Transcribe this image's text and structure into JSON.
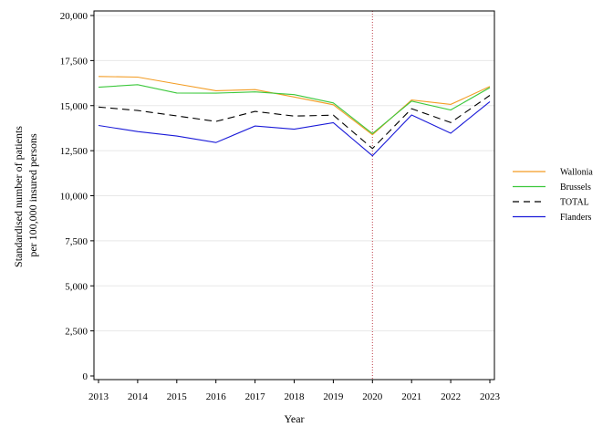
{
  "chart_data": {
    "type": "line",
    "xlabel": "Year",
    "ylabel": [
      "Standardised number of patients",
      "per 100,000 insured persons"
    ],
    "x": [
      2013,
      2014,
      2015,
      2016,
      2017,
      2018,
      2019,
      2020,
      2021,
      2022,
      2023
    ],
    "x_tick_labels": [
      "2013",
      "2014",
      "2015",
      "2016",
      "2017",
      "2018",
      "2019",
      "2020",
      "2021",
      "2022",
      "2023"
    ],
    "ylim": [
      0,
      20000
    ],
    "y_ticks": [
      0,
      2500,
      5000,
      7500,
      10000,
      12500,
      15000,
      17500,
      20000
    ],
    "y_tick_labels": [
      "0",
      "2,500",
      "5,000",
      "7,500",
      "10,000",
      "12,500",
      "15,000",
      "17,500",
      "20,000"
    ],
    "grid": "horizontal",
    "legend_position": "right",
    "reference_line": {
      "x": 2020,
      "color": "#c0404a",
      "style": "dotted"
    },
    "series": [
      {
        "name": "Wallonia",
        "color": "#f39c23",
        "dash": "none",
        "values": [
          16620,
          16580,
          16200,
          15830,
          15890,
          15480,
          15050,
          13380,
          15310,
          15070,
          16060
        ]
      },
      {
        "name": "Brussels",
        "color": "#3cc83c",
        "dash": "none",
        "values": [
          16020,
          16160,
          15700,
          15690,
          15760,
          15610,
          15150,
          13450,
          15250,
          14760,
          16000
        ]
      },
      {
        "name": "TOTAL",
        "color": "#000000",
        "dash": "8,5",
        "values": [
          14920,
          14730,
          14430,
          14120,
          14680,
          14420,
          14470,
          12620,
          14830,
          14060,
          15570
        ]
      },
      {
        "name": "Flanders",
        "color": "#1a1ad8",
        "dash": "none",
        "values": [
          13900,
          13560,
          13310,
          12950,
          13870,
          13690,
          14050,
          12220,
          14480,
          13470,
          15220
        ]
      }
    ]
  }
}
